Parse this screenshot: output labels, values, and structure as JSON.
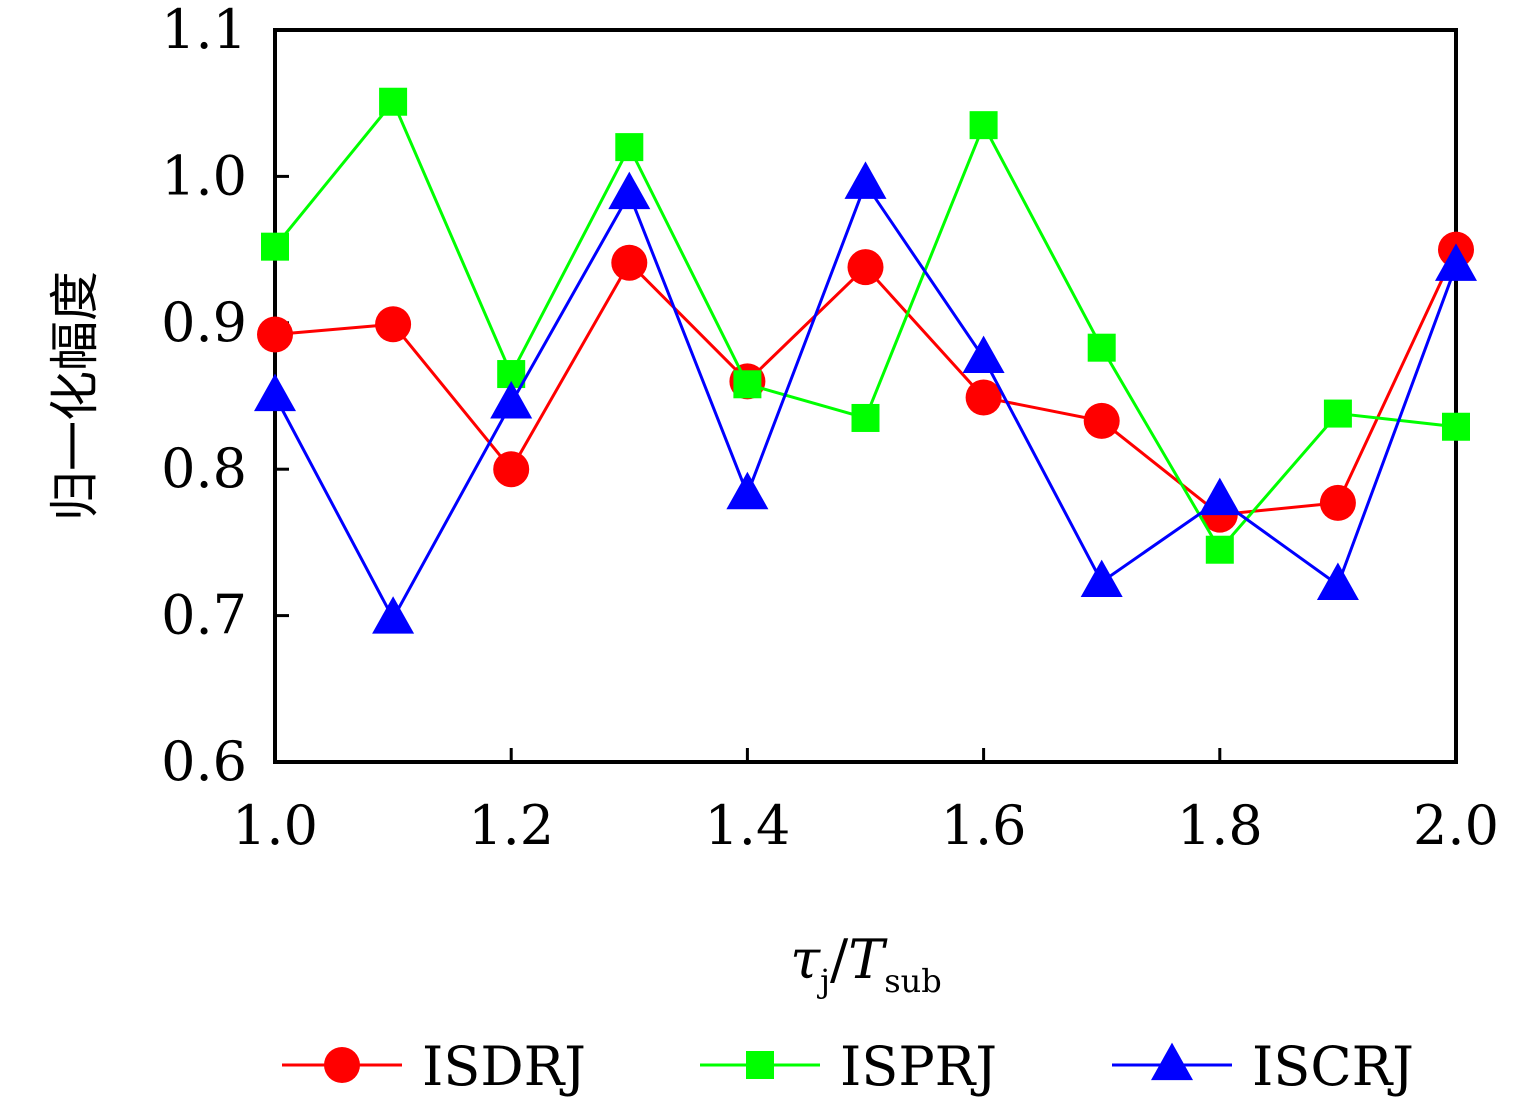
{
  "chart_data": {
    "type": "line",
    "title": "",
    "xlabel": {
      "main": "τ",
      "main_sub": "j",
      "sep": "/",
      "denom": "T",
      "denom_sub": "sub"
    },
    "ylabel": "归一化幅度",
    "xlim": [
      1.0,
      2.0
    ],
    "ylim": [
      0.6,
      1.1
    ],
    "xticks": [
      1.0,
      1.2,
      1.4,
      1.6,
      1.8,
      2.0
    ],
    "xtick_labels": [
      "1.0",
      "1.2",
      "1.4",
      "1.6",
      "1.8",
      "2.0"
    ],
    "yticks": [
      0.6,
      0.7,
      0.8,
      0.9,
      1.0,
      1.1
    ],
    "ytick_labels": [
      "0.6",
      "0.7",
      "0.8",
      "0.9",
      "1.0",
      "1.1"
    ],
    "x": [
      1.0,
      1.1,
      1.2,
      1.3,
      1.4,
      1.5,
      1.6,
      1.7,
      1.8,
      1.9,
      2.0
    ],
    "series": [
      {
        "name": "ISDRJ",
        "color": "#ff0000",
        "marker": "circle",
        "values": [
          0.892,
          0.899,
          0.8,
          0.941,
          0.86,
          0.938,
          0.849,
          0.833,
          0.769,
          0.777,
          0.95
        ]
      },
      {
        "name": "ISPRJ",
        "color": "#00ff00",
        "marker": "square",
        "values": [
          0.952,
          1.051,
          0.865,
          1.02,
          0.858,
          0.835,
          1.035,
          0.883,
          0.745,
          0.838,
          0.829
        ]
      },
      {
        "name": "ISCRJ",
        "color": "#0000ff",
        "marker": "triangle",
        "values": [
          0.85,
          0.698,
          0.845,
          0.988,
          0.783,
          0.995,
          0.876,
          0.723,
          0.779,
          0.721,
          0.939
        ]
      }
    ],
    "legend_position": "bottom"
  }
}
